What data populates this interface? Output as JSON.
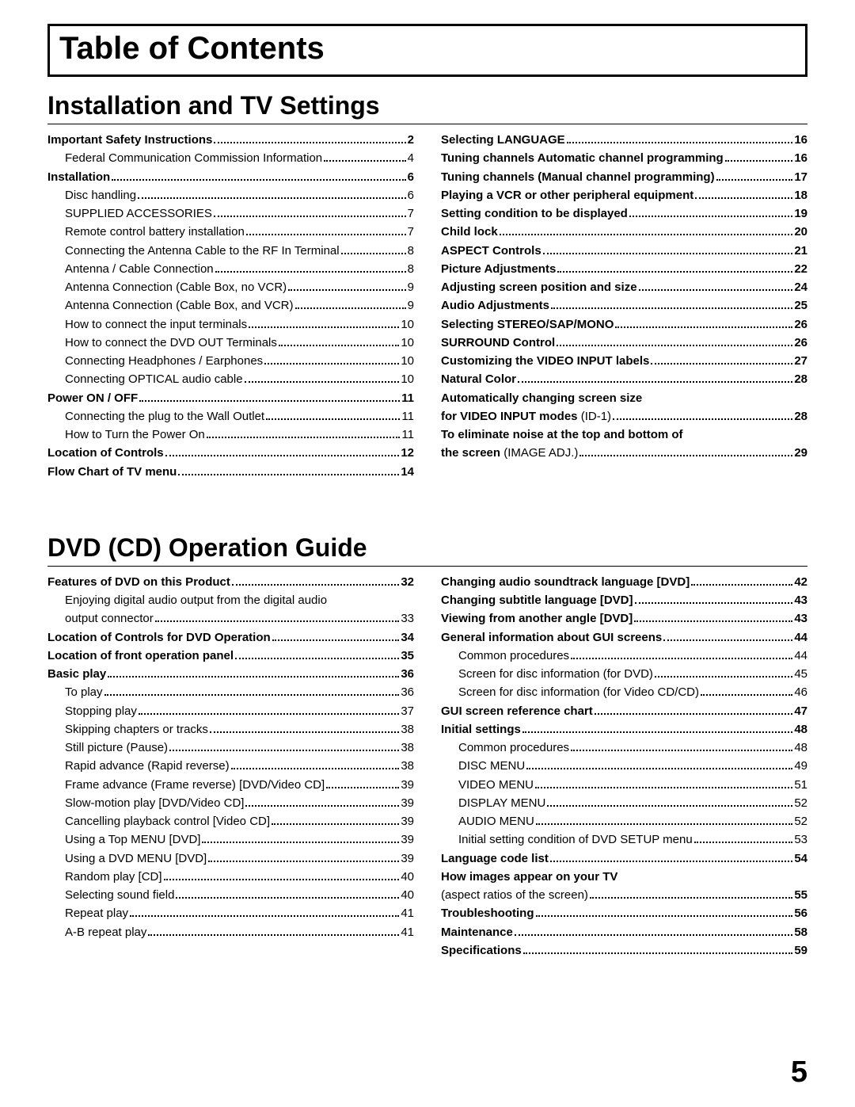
{
  "title": "Table of Contents",
  "page_number": "5",
  "sections": [
    {
      "heading": "Installation and TV Settings",
      "columns": [
        [
          {
            "label": "Important Safety Instructions",
            "page": "2",
            "bold": true,
            "indent": false
          },
          {
            "label": "Federal Communication Commission Information",
            "page": "4",
            "bold": false,
            "indent": true
          },
          {
            "label": "Installation",
            "page": "6",
            "bold": true,
            "indent": false
          },
          {
            "label": "Disc handling",
            "page": "6",
            "bold": false,
            "indent": true
          },
          {
            "label": "SUPPLIED ACCESSORIES",
            "page": "7",
            "bold": false,
            "indent": true
          },
          {
            "label": "Remote control battery installation",
            "page": "7",
            "bold": false,
            "indent": true
          },
          {
            "label": "Connecting the Antenna Cable to the RF In Terminal",
            "page": "8",
            "bold": false,
            "indent": true
          },
          {
            "label": "Antenna / Cable Connection",
            "page": "8",
            "bold": false,
            "indent": true
          },
          {
            "label": "Antenna Connection (Cable Box, no VCR)",
            "page": "9",
            "bold": false,
            "indent": true
          },
          {
            "label": "Antenna Connection (Cable Box, and VCR)",
            "page": "9",
            "bold": false,
            "indent": true
          },
          {
            "label": "How to connect the input terminals",
            "page": "10",
            "bold": false,
            "indent": true
          },
          {
            "label": "How to connect the DVD OUT Terminals",
            "page": "10",
            "bold": false,
            "indent": true
          },
          {
            "label": "Connecting Headphones / Earphones",
            "page": "10",
            "bold": false,
            "indent": true
          },
          {
            "label": "Connecting OPTICAL audio cable",
            "page": "10",
            "bold": false,
            "indent": true
          },
          {
            "label": "Power ON / OFF",
            "page": "11",
            "bold": true,
            "indent": false
          },
          {
            "label": "Connecting the plug to the Wall Outlet",
            "page": "11",
            "bold": false,
            "indent": true
          },
          {
            "label": "How to Turn the Power On",
            "page": "11",
            "bold": false,
            "indent": true
          },
          {
            "label": "Location of Controls",
            "page": "12",
            "bold": true,
            "indent": false
          },
          {
            "label": "Flow Chart of TV menu",
            "page": "14",
            "bold": true,
            "indent": false
          }
        ],
        [
          {
            "label": "Selecting LANGUAGE",
            "page": "16",
            "bold": true,
            "indent": false
          },
          {
            "label_html": "<b>Tuning channels</b> Automatic channel programming",
            "page": "16",
            "bold": true,
            "indent": false
          },
          {
            "label_html": "<b>Tuning channels</b> (Manual channel programming)",
            "page": "17",
            "bold": true,
            "indent": false
          },
          {
            "label": "Playing a VCR or other peripheral equipment",
            "page": "18",
            "bold": true,
            "indent": false
          },
          {
            "label": "Setting condition to be displayed",
            "page": "19",
            "bold": true,
            "indent": false
          },
          {
            "label": "Child lock",
            "page": "20",
            "bold": true,
            "indent": false
          },
          {
            "label": "ASPECT Controls",
            "page": "21",
            "bold": true,
            "indent": false
          },
          {
            "label": "Picture Adjustments",
            "page": "22",
            "bold": true,
            "indent": false
          },
          {
            "label": "Adjusting screen position and size",
            "page": "24",
            "bold": true,
            "indent": false
          },
          {
            "label": "Audio Adjustments",
            "page": "25",
            "bold": true,
            "indent": false
          },
          {
            "label": "Selecting STEREO/SAP/MONO",
            "page": "26",
            "bold": true,
            "indent": false
          },
          {
            "label": "SURROUND Control",
            "page": "26",
            "bold": true,
            "indent": false
          },
          {
            "label": "Customizing the VIDEO INPUT labels",
            "page": "27",
            "bold": true,
            "indent": false
          },
          {
            "label": "Natural Color",
            "page": "28",
            "bold": true,
            "indent": false
          },
          {
            "type": "multi",
            "lines": [
              {
                "html": "<b>Automatically changing screen size</b>"
              },
              {
                "html": "<b>for VIDEO INPUT modes</b> (ID-1)",
                "page": "28",
                "bold_page": true
              }
            ]
          },
          {
            "type": "multi",
            "lines": [
              {
                "html": "<b>To eliminate noise at the top and bottom of</b>"
              },
              {
                "html": "<b>the screen</b> (IMAGE ADJ.)",
                "page": "29",
                "bold_page": true
              }
            ]
          }
        ]
      ]
    },
    {
      "heading": "DVD (CD)  Operation Guide",
      "columns": [
        [
          {
            "label": "Features of DVD on this Product",
            "page": "32",
            "bold": true,
            "indent": false
          },
          {
            "type": "multi",
            "lines": [
              {
                "html": "Enjoying digital audio output from the digital audio",
                "indent": true
              },
              {
                "html": "output connector",
                "page": "33",
                "indent": true
              }
            ]
          },
          {
            "label": "Location of Controls for DVD Operation",
            "page": "34",
            "bold": true,
            "indent": false
          },
          {
            "label": "Location of front operation panel",
            "page": "35",
            "bold": true,
            "indent": false
          },
          {
            "label": "Basic play",
            "page": "36",
            "bold": true,
            "indent": false
          },
          {
            "label": "To play",
            "page": "36",
            "bold": false,
            "indent": true
          },
          {
            "label": "Stopping play",
            "page": "37",
            "bold": false,
            "indent": true
          },
          {
            "label": "Skipping chapters or tracks",
            "page": "38",
            "bold": false,
            "indent": true
          },
          {
            "label": "Still picture (Pause)",
            "page": "38",
            "bold": false,
            "indent": true
          },
          {
            "label": "Rapid advance (Rapid reverse)",
            "page": "38",
            "bold": false,
            "indent": true
          },
          {
            "label": "Frame advance (Frame reverse) [DVD/Video CD]",
            "page": "39",
            "bold": false,
            "indent": true
          },
          {
            "label": "Slow-motion play [DVD/Video CD]",
            "page": "39",
            "bold": false,
            "indent": true
          },
          {
            "label": "Cancelling playback control [Video CD]",
            "page": "39",
            "bold": false,
            "indent": true
          },
          {
            "label": "Using a Top MENU [DVD]",
            "page": "39",
            "bold": false,
            "indent": true
          },
          {
            "label": "Using a DVD MENU [DVD]",
            "page": "39",
            "bold": false,
            "indent": true
          },
          {
            "label": "Random play [CD]",
            "page": "40",
            "bold": false,
            "indent": true
          },
          {
            "label": "Selecting sound field",
            "page": "40",
            "bold": false,
            "indent": true
          },
          {
            "label": "Repeat play",
            "page": "41",
            "bold": false,
            "indent": true
          },
          {
            "label": "A-B repeat play",
            "page": "41",
            "bold": false,
            "indent": true
          }
        ],
        [
          {
            "label_html": "<b>Changing audio soundtrack language</b> [DVD]",
            "page": "42",
            "bold": true,
            "indent": false
          },
          {
            "label_html": "<b>Changing subtitle language</b> [DVD]",
            "page": "43",
            "bold": true,
            "indent": false
          },
          {
            "label_html": "<b>Viewing from another angle</b> [DVD]",
            "page": "43",
            "bold": true,
            "indent": false
          },
          {
            "label": "General information about GUI screens",
            "page": "44",
            "bold": true,
            "indent": false
          },
          {
            "label": "Common procedures",
            "page": "44",
            "bold": false,
            "indent": true
          },
          {
            "label": "Screen for disc information (for DVD)",
            "page": "45",
            "bold": false,
            "indent": true
          },
          {
            "label": "Screen for disc information (for Video CD/CD)",
            "page": "46",
            "bold": false,
            "indent": true
          },
          {
            "label": "GUI screen reference chart",
            "page": "47",
            "bold": true,
            "indent": false
          },
          {
            "label": "Initial settings",
            "page": "48",
            "bold": true,
            "indent": false
          },
          {
            "label": "Common procedures",
            "page": "48",
            "bold": false,
            "indent": true
          },
          {
            "label": "DISC MENU",
            "page": "49",
            "bold": false,
            "indent": true
          },
          {
            "label": "VIDEO MENU",
            "page": "51",
            "bold": false,
            "indent": true
          },
          {
            "label": "DISPLAY MENU",
            "page": "52",
            "bold": false,
            "indent": true
          },
          {
            "label": "AUDIO MENU",
            "page": "52",
            "bold": false,
            "indent": true
          },
          {
            "label": "Initial setting condition of DVD SETUP menu",
            "page": "53",
            "bold": false,
            "indent": true
          },
          {
            "label": "Language code list",
            "page": "54",
            "bold": true,
            "indent": false
          },
          {
            "type": "multi",
            "lines": [
              {
                "html": "<b>How images appear on your TV</b>"
              },
              {
                "html": "(aspect ratios of the screen)",
                "page": "55",
                "bold_page": true
              }
            ]
          },
          {
            "label": "Troubleshooting",
            "page": "56",
            "bold": true,
            "indent": false
          },
          {
            "label": "Maintenance",
            "page": "58",
            "bold": true,
            "indent": false
          },
          {
            "label": "Specifications",
            "page": "59",
            "bold": true,
            "indent": false
          }
        ]
      ]
    }
  ]
}
